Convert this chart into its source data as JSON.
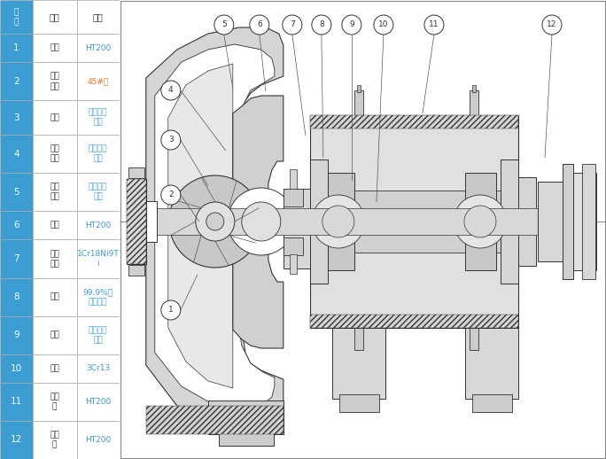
{
  "table_header_col0": "序\n号",
  "table_header_col1": "名称",
  "table_header_col2": "材质",
  "table_rows": [
    [
      "1",
      "泵体",
      "HT200"
    ],
    [
      "2",
      "叶轮\n骨架",
      "45#钢"
    ],
    [
      "3",
      "叶轮",
      "聚全氟乙\n丙烯"
    ],
    [
      "4",
      "泵体\n衬里",
      "聚全氟乙\n丙烯"
    ],
    [
      "5",
      "泵盖\n衬里",
      "聚全氟乙\n丙烯"
    ],
    [
      "6",
      "泵盖",
      "HT200"
    ],
    [
      "7",
      "机封\n压盖",
      "1Cr18Ni9T\ni"
    ],
    [
      "8",
      "静环",
      "99.9%氧\n化铝陶瓷"
    ],
    [
      "9",
      "动环",
      "填充四氟\n乙烯"
    ],
    [
      "10",
      "泵轴",
      "3Cr13"
    ],
    [
      "11",
      "轴承\n体",
      "HT200"
    ],
    [
      "12",
      "联轴\n器",
      "HT200"
    ]
  ],
  "row_height_units": [
    1.5,
    2.0,
    1.8,
    2.0,
    2.0,
    1.5,
    2.0,
    2.0,
    2.0,
    1.5,
    2.0,
    2.0
  ],
  "blue": "#3b9dd2",
  "orange": "#e87722",
  "white": "#ffffff",
  "dark": "#333333",
  "blue_text": "#3b9dd2",
  "orange_text": "#e87722",
  "gray_border": "#aaaaaa",
  "light_gray": "#f0f0f0",
  "diagram_bg": "#ffffff"
}
